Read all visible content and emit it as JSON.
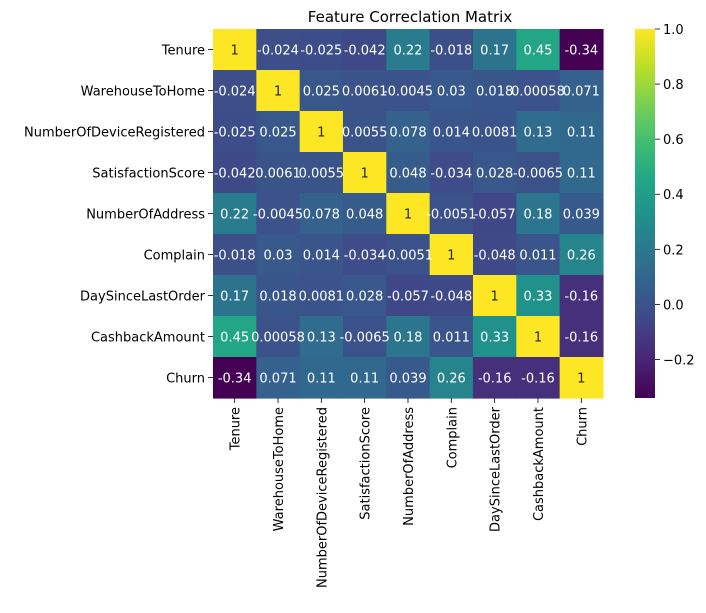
{
  "chart_data": {
    "type": "heatmap",
    "title": "Feature Correclation Matrix",
    "xlabel": "",
    "ylabel": "",
    "labels": [
      "Tenure",
      "WarehouseToHome",
      "NumberOfDeviceRegistered",
      "SatisfactionScore",
      "NumberOfAddress",
      "Complain",
      "DaySinceLastOrder",
      "CashbackAmount",
      "Churn"
    ],
    "values": [
      [
        1,
        -0.024,
        -0.025,
        -0.042,
        0.22,
        -0.018,
        0.17,
        0.45,
        -0.34
      ],
      [
        -0.024,
        1,
        0.025,
        0.0061,
        -0.0045,
        0.03,
        0.018,
        0.00058,
        0.071
      ],
      [
        -0.025,
        0.025,
        1,
        0.0055,
        0.078,
        0.014,
        0.0081,
        0.13,
        0.11
      ],
      [
        -0.042,
        0.0061,
        0.0055,
        1,
        0.048,
        -0.034,
        0.028,
        -0.0065,
        0.11
      ],
      [
        0.22,
        -0.0045,
        0.078,
        0.048,
        1,
        -0.0051,
        -0.057,
        0.18,
        0.039
      ],
      [
        -0.018,
        0.03,
        0.014,
        -0.034,
        -0.0051,
        1,
        -0.048,
        0.011,
        0.26
      ],
      [
        0.17,
        0.018,
        0.0081,
        0.028,
        -0.057,
        -0.048,
        1,
        0.33,
        -0.16
      ],
      [
        0.45,
        0.00058,
        0.13,
        -0.0065,
        0.18,
        0.011,
        0.33,
        1,
        -0.16
      ],
      [
        -0.34,
        0.071,
        0.11,
        0.11,
        0.039,
        0.26,
        -0.16,
        -0.16,
        1
      ]
    ],
    "annotations": [
      [
        "1",
        "-0.024",
        "-0.025",
        "-0.042",
        "0.22",
        "-0.018",
        "0.17",
        "0.45",
        "-0.34"
      ],
      [
        "-0.024",
        "1",
        "0.025",
        "0.0061",
        "-0.0045",
        "0.03",
        "0.018",
        "0.00058",
        "0.071"
      ],
      [
        "-0.025",
        "0.025",
        "1",
        "0.0055",
        "0.078",
        "0.014",
        "0.0081",
        "0.13",
        "0.11"
      ],
      [
        "-0.042",
        "0.0061",
        "0.0055",
        "1",
        "0.048",
        "-0.034",
        "0.028",
        "-0.0065",
        "0.11"
      ],
      [
        "0.22",
        "-0.0045",
        "0.078",
        "0.048",
        "1",
        "-0.0051",
        "-0.057",
        "0.18",
        "0.039"
      ],
      [
        "-0.018",
        "0.03",
        "0.014",
        "-0.034",
        "-0.0051",
        "1",
        "-0.048",
        "0.011",
        "0.26"
      ],
      [
        "0.17",
        "0.018",
        "0.0081",
        "0.028",
        "-0.057",
        "-0.048",
        "1",
        "0.33",
        "-0.16"
      ],
      [
        "0.45",
        "0.00058",
        "0.13",
        "-0.0065",
        "0.18",
        "0.011",
        "0.33",
        "1",
        "-0.16"
      ],
      [
        "-0.34",
        "0.071",
        "0.11",
        "0.11",
        "0.039",
        "0.26",
        "-0.16",
        "-0.16",
        "1"
      ]
    ],
    "colormap": "viridis",
    "vmin": -0.34,
    "vmax": 1,
    "colorbar": {
      "ticks": [
        1.0,
        0.8,
        0.6,
        0.4,
        0.2,
        0.0,
        -0.2
      ],
      "tick_labels": [
        "1.0",
        "0.8",
        "0.6",
        "0.4",
        "0.2",
        "0.0",
        "−0.2"
      ]
    },
    "grid": false,
    "legend": "right"
  }
}
